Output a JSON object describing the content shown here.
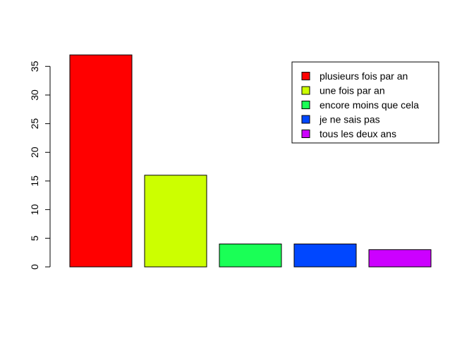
{
  "chart_data": {
    "type": "bar",
    "categories": [
      "plusieurs fois par an",
      "une fois par an",
      "encore moins que cela",
      "je ne sais pas",
      "tous les deux ans"
    ],
    "values": [
      37,
      16,
      4,
      4,
      3
    ],
    "colors": [
      "#ff0000",
      "#ccff00",
      "#1aff56",
      "#0047ff",
      "#cc00ff"
    ],
    "ylim": [
      0,
      37
    ],
    "yticks": [
      0,
      5,
      10,
      15,
      20,
      25,
      30,
      35
    ],
    "ytick_labels": [
      "0",
      "5",
      "10",
      "15",
      "20",
      "25",
      "30",
      "35"
    ],
    "title": "",
    "xlabel": "",
    "ylabel": "",
    "legend": {
      "position": "top-right",
      "entries": [
        "plusieurs fois par an",
        "une fois par an",
        "encore moins que cela",
        "je ne sais pas",
        "tous les deux ans"
      ]
    },
    "grid": false
  }
}
